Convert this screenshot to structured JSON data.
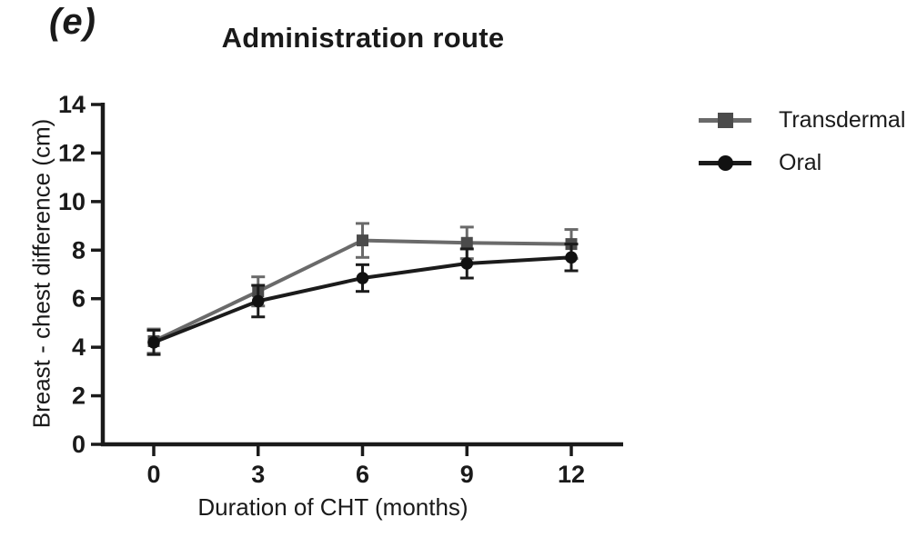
{
  "figure": {
    "panel_label": "(e)"
  },
  "chart_data": {
    "type": "line",
    "title": "Administration route",
    "xlabel": "Duration of CHT (months)",
    "ylabel": "Breast - chest difference (cm)",
    "x": [
      0,
      3,
      6,
      9,
      12
    ],
    "xtick_labels": [
      "0",
      "3",
      "6",
      "9",
      "12"
    ],
    "ytick_values": [
      0,
      2,
      4,
      6,
      8,
      10,
      12,
      14
    ],
    "ylim": [
      0,
      14
    ],
    "grid": false,
    "legend_position": "right",
    "error_bars": true,
    "series": [
      {
        "name": "Transdermal",
        "marker": "square",
        "color": "#6a6a6a",
        "marker_color": "#4b4b4b",
        "values": [
          4.25,
          6.3,
          8.4,
          8.3,
          8.25
        ],
        "errors": [
          0.5,
          0.6,
          0.7,
          0.65,
          0.6
        ]
      },
      {
        "name": "Oral",
        "marker": "circle",
        "color": "#1b1b1b",
        "marker_color": "#111111",
        "values": [
          4.2,
          5.9,
          6.85,
          7.45,
          7.7
        ],
        "errors": [
          0.5,
          0.65,
          0.55,
          0.6,
          0.55
        ]
      }
    ],
    "colors": {
      "axis": "#1a1a1a",
      "text": "#1a1a1a"
    }
  }
}
